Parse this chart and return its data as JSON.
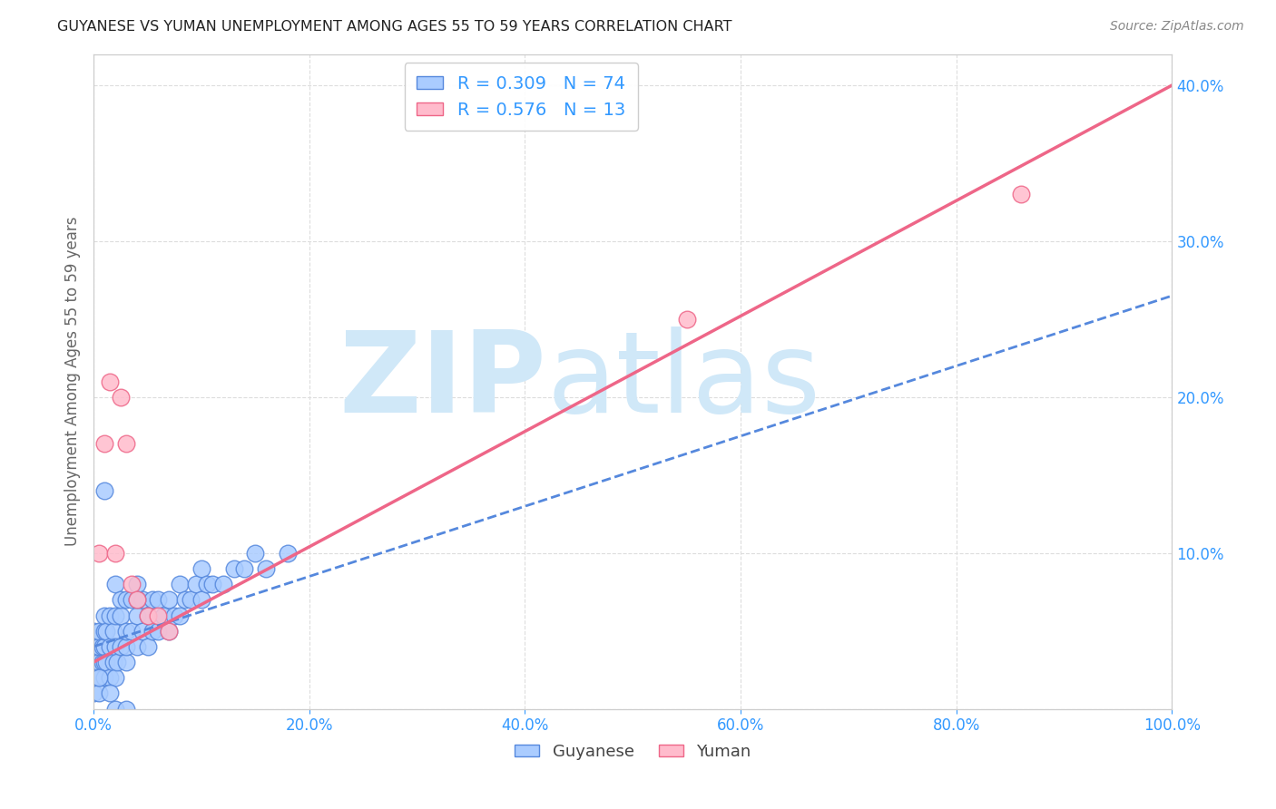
{
  "title": "GUYANESE VS YUMAN UNEMPLOYMENT AMONG AGES 55 TO 59 YEARS CORRELATION CHART",
  "source": "Source: ZipAtlas.com",
  "ylabel": "Unemployment Among Ages 55 to 59 years",
  "xlim": [
    0,
    1.0
  ],
  "ylim": [
    0,
    0.42
  ],
  "xticks": [
    0.0,
    0.2,
    0.4,
    0.6,
    0.8,
    1.0
  ],
  "xticklabels": [
    "0.0%",
    "20.0%",
    "40.0%",
    "60.0%",
    "80.0%",
    "100.0%"
  ],
  "yticks": [
    0.0,
    0.1,
    0.2,
    0.3,
    0.4
  ],
  "yticklabels_right": [
    "",
    "10.0%",
    "20.0%",
    "30.0%",
    "40.0%"
  ],
  "title_color": "#222222",
  "source_color": "#888888",
  "axis_tick_color": "#3399ff",
  "background_color": "#ffffff",
  "guyanese_color": "#aaccff",
  "guyanese_edge_color": "#5588dd",
  "guyanese_line_color": "#5588dd",
  "yuman_color": "#ffbbcc",
  "yuman_edge_color": "#ee6688",
  "yuman_line_color": "#ee6688",
  "guyanese_R": 0.309,
  "guyanese_N": 74,
  "yuman_R": 0.576,
  "yuman_N": 13,
  "guyanese_scatter_x": [
    0.0,
    0.0,
    0.0,
    0.0,
    0.005,
    0.005,
    0.005,
    0.005,
    0.008,
    0.008,
    0.01,
    0.01,
    0.01,
    0.01,
    0.01,
    0.012,
    0.012,
    0.015,
    0.015,
    0.015,
    0.018,
    0.018,
    0.02,
    0.02,
    0.02,
    0.02,
    0.022,
    0.025,
    0.025,
    0.025,
    0.03,
    0.03,
    0.03,
    0.03,
    0.035,
    0.035,
    0.04,
    0.04,
    0.04,
    0.045,
    0.045,
    0.05,
    0.05,
    0.055,
    0.055,
    0.06,
    0.06,
    0.065,
    0.07,
    0.07,
    0.075,
    0.08,
    0.08,
    0.085,
    0.09,
    0.095,
    0.1,
    0.1,
    0.105,
    0.11,
    0.12,
    0.13,
    0.14,
    0.15,
    0.16,
    0.18,
    0.0,
    0.005,
    0.005,
    0.01,
    0.015,
    0.02,
    0.03,
    0.04
  ],
  "guyanese_scatter_y": [
    0.02,
    0.03,
    0.04,
    0.05,
    0.02,
    0.03,
    0.04,
    0.05,
    0.03,
    0.04,
    0.02,
    0.03,
    0.04,
    0.05,
    0.06,
    0.03,
    0.05,
    0.02,
    0.04,
    0.06,
    0.03,
    0.05,
    0.02,
    0.04,
    0.06,
    0.08,
    0.03,
    0.04,
    0.06,
    0.07,
    0.03,
    0.04,
    0.05,
    0.07,
    0.05,
    0.07,
    0.04,
    0.06,
    0.08,
    0.05,
    0.07,
    0.04,
    0.06,
    0.05,
    0.07,
    0.05,
    0.07,
    0.06,
    0.05,
    0.07,
    0.06,
    0.06,
    0.08,
    0.07,
    0.07,
    0.08,
    0.07,
    0.09,
    0.08,
    0.08,
    0.08,
    0.09,
    0.09,
    0.1,
    0.09,
    0.1,
    0.01,
    0.01,
    0.02,
    0.14,
    0.01,
    0.0,
    0.0,
    0.07
  ],
  "yuman_scatter_x": [
    0.005,
    0.01,
    0.015,
    0.02,
    0.025,
    0.03,
    0.035,
    0.04,
    0.05,
    0.06,
    0.07,
    0.86,
    0.55
  ],
  "yuman_scatter_y": [
    0.1,
    0.17,
    0.21,
    0.1,
    0.2,
    0.17,
    0.08,
    0.07,
    0.06,
    0.06,
    0.05,
    0.33,
    0.25
  ],
  "watermark_zip": "ZIP",
  "watermark_atlas": "atlas",
  "watermark_color": "#d0e8f8",
  "legend_text_color": "#3399ff",
  "grid_color": "#dddddd",
  "guyanese_line_x0": 0.0,
  "guyanese_line_x1": 1.0,
  "guyanese_line_y0": 0.04,
  "guyanese_line_y1": 0.265,
  "yuman_line_x0": 0.0,
  "yuman_line_x1": 1.0,
  "yuman_line_y0": 0.03,
  "yuman_line_y1": 0.4
}
